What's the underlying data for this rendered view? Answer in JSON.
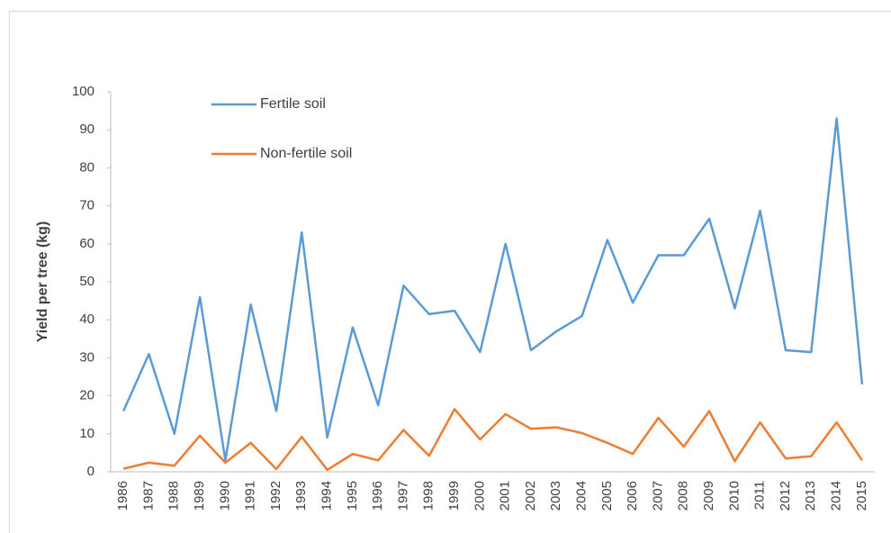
{
  "chart_data": {
    "type": "line",
    "y_label": "Yield per tree (kg)",
    "categories": [
      "1986",
      "1987",
      "1988",
      "1989",
      "1990",
      "1991",
      "1992",
      "1993",
      "1994",
      "1995",
      "1996",
      "1997",
      "1998",
      "1999",
      "2000",
      "2001",
      "2002",
      "2003",
      "2004",
      "2005",
      "2006",
      "2007",
      "2008",
      "2009",
      "2010",
      "2011",
      "2012",
      "2013",
      "2014",
      "2015"
    ],
    "series": [
      {
        "name": "Fertile soil",
        "color": "#5b9bd5",
        "values": [
          16,
          31,
          10,
          46,
          3,
          44,
          16,
          63,
          9,
          38,
          17.5,
          49,
          41.5,
          42.4,
          31.5,
          60,
          32,
          37,
          41,
          61,
          44.5,
          57,
          57,
          66.6,
          43,
          68.7,
          32,
          31.5,
          93,
          23
        ]
      },
      {
        "name": "Non-fertile soil",
        "color": "#ed7d31",
        "values": [
          0.8,
          2.4,
          1.6,
          9.5,
          2.4,
          7.6,
          0.7,
          9.2,
          0.5,
          4.7,
          3,
          11,
          4.2,
          16.5,
          8.5,
          15.2,
          11.3,
          11.7,
          10.2,
          7.6,
          4.7,
          14.2,
          6.6,
          16,
          2.8,
          13,
          3.5,
          4.1,
          13,
          3
        ]
      }
    ],
    "ylim": [
      0,
      100
    ],
    "yticks": [
      0,
      10,
      20,
      30,
      40,
      50,
      60,
      70,
      80,
      90,
      100
    ],
    "grid": false,
    "legend": "top-left"
  }
}
